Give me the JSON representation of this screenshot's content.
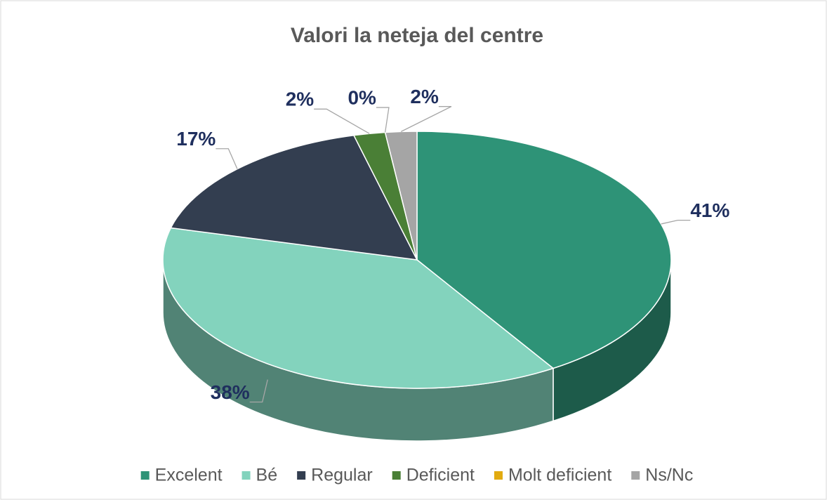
{
  "chart_data": {
    "type": "pie",
    "title": "Valori la neteja del centre",
    "categories": [
      "Excelent",
      "Bé",
      "Regular",
      "Deficient",
      "Molt deficient",
      "Ns/Nc"
    ],
    "values": [
      41,
      38,
      17,
      2,
      0,
      2
    ],
    "value_labels": [
      "41%",
      "38%",
      "17%",
      "2%",
      "0%",
      "2%"
    ],
    "colors": [
      "#2e9377",
      "#83d3bd",
      "#333e50",
      "#4a7f36",
      "#e2ab10",
      "#a5a5a5"
    ],
    "legend": "bottom"
  }
}
